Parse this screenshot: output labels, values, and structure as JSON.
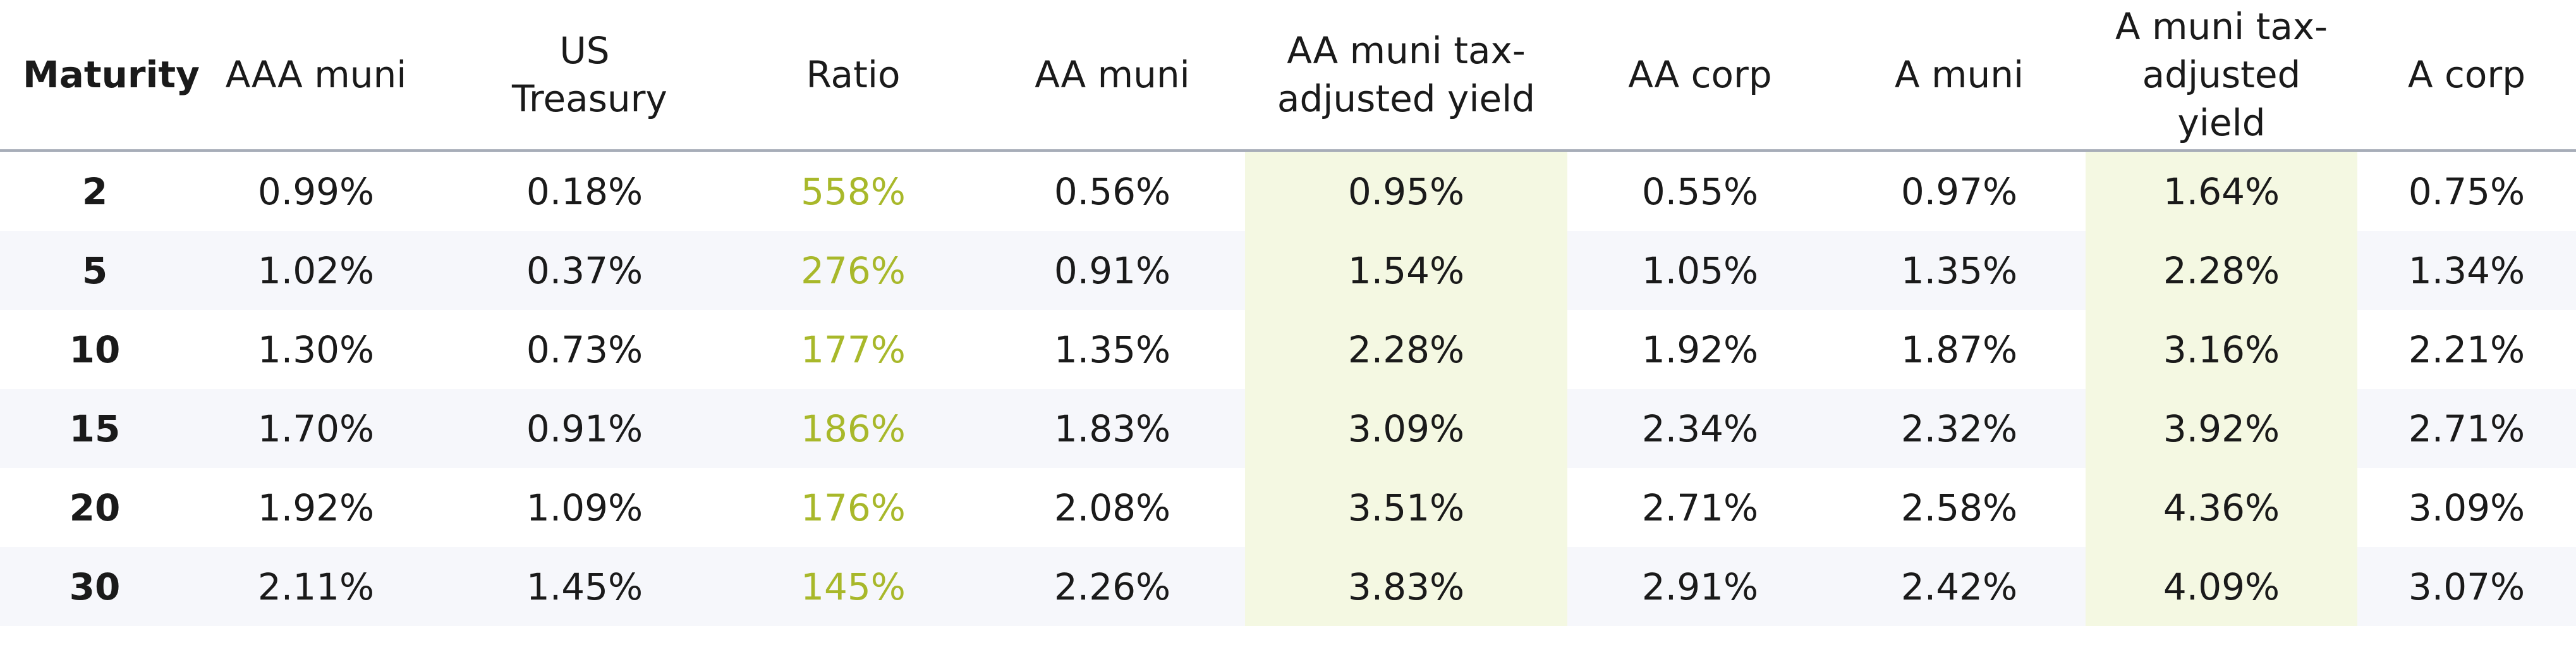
{
  "table": {
    "headers": [
      "Maturity",
      "AAA muni",
      "US Treasury",
      "Ratio",
      "AA muni",
      "AA muni tax-adjusted yield",
      "AA corp",
      "A muni",
      "A muni tax-adjusted yield",
      "A corp"
    ],
    "rows": [
      [
        "2",
        "0.99%",
        "0.18%",
        "558%",
        "0.56%",
        "0.95%",
        "0.55%",
        "0.97%",
        "1.64%",
        "0.75%"
      ],
      [
        "5",
        "1.02%",
        "0.37%",
        "276%",
        "0.91%",
        "1.54%",
        "1.05%",
        "1.35%",
        "2.28%",
        "1.34%"
      ],
      [
        "10",
        "1.30%",
        "0.73%",
        "177%",
        "1.35%",
        "2.28%",
        "1.92%",
        "1.87%",
        "3.16%",
        "2.21%"
      ],
      [
        "15",
        "1.70%",
        "0.91%",
        "186%",
        "1.83%",
        "3.09%",
        "2.34%",
        "2.32%",
        "3.92%",
        "2.71%"
      ],
      [
        "20",
        "1.92%",
        "1.09%",
        "176%",
        "2.08%",
        "3.51%",
        "2.71%",
        "2.58%",
        "4.36%",
        "3.09%"
      ],
      [
        "30",
        "2.11%",
        "1.45%",
        "145%",
        "2.26%",
        "3.83%",
        "2.91%",
        "2.42%",
        "4.09%",
        "3.07%"
      ]
    ]
  },
  "colors": {
    "ratio_text": "#a8b82a",
    "highlight_column_bg": "#f4f8e2",
    "alt_row_bg": "#f6f7fb",
    "header_rule": "#a7adb8"
  }
}
